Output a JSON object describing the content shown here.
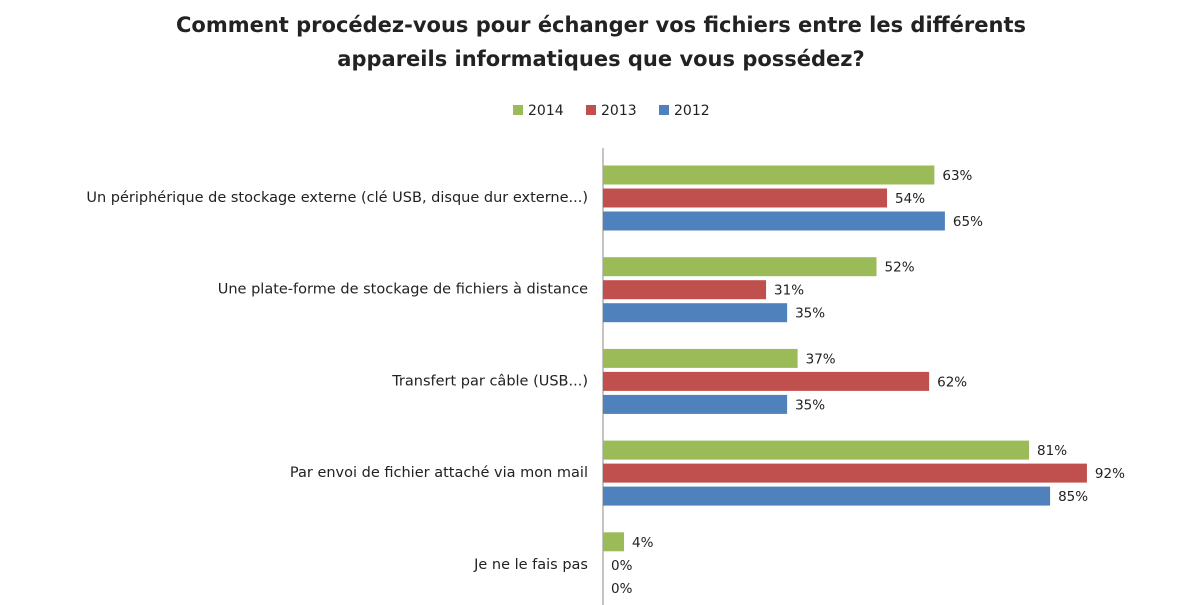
{
  "chart_data": {
    "type": "bar",
    "orientation": "horizontal",
    "title": [
      "Comment procédez-vous pour échanger vos fichiers entre les différents",
      "appareils informatiques que vous possédez?"
    ],
    "categories": [
      "Un périphérique de stockage externe (clé USB, disque dur externe...)",
      "Une plate-forme de stockage de fichiers à distance",
      "Transfert par câble (USB...)",
      "Par envoi de fichier attaché via mon mail",
      "Je ne le fais pas"
    ],
    "series": [
      {
        "name": "2014",
        "color": "#9bbb59",
        "values": [
          63,
          52,
          37,
          81,
          4
        ],
        "value_labels": [
          "63%",
          "52%",
          "37%",
          "81%",
          "4%"
        ]
      },
      {
        "name": "2013",
        "color": "#c0504d",
        "values": [
          54,
          31,
          62,
          92,
          0
        ],
        "value_labels": [
          "54%",
          "31%",
          "62%",
          "92%",
          "0%"
        ]
      },
      {
        "name": "2012",
        "color": "#4f81bd",
        "values": [
          65,
          35,
          35,
          85,
          0
        ],
        "value_labels": [
          "65%",
          "35%",
          "35%",
          "85%",
          "0%"
        ]
      }
    ],
    "xlim": [
      0,
      100
    ],
    "legend": "top"
  }
}
